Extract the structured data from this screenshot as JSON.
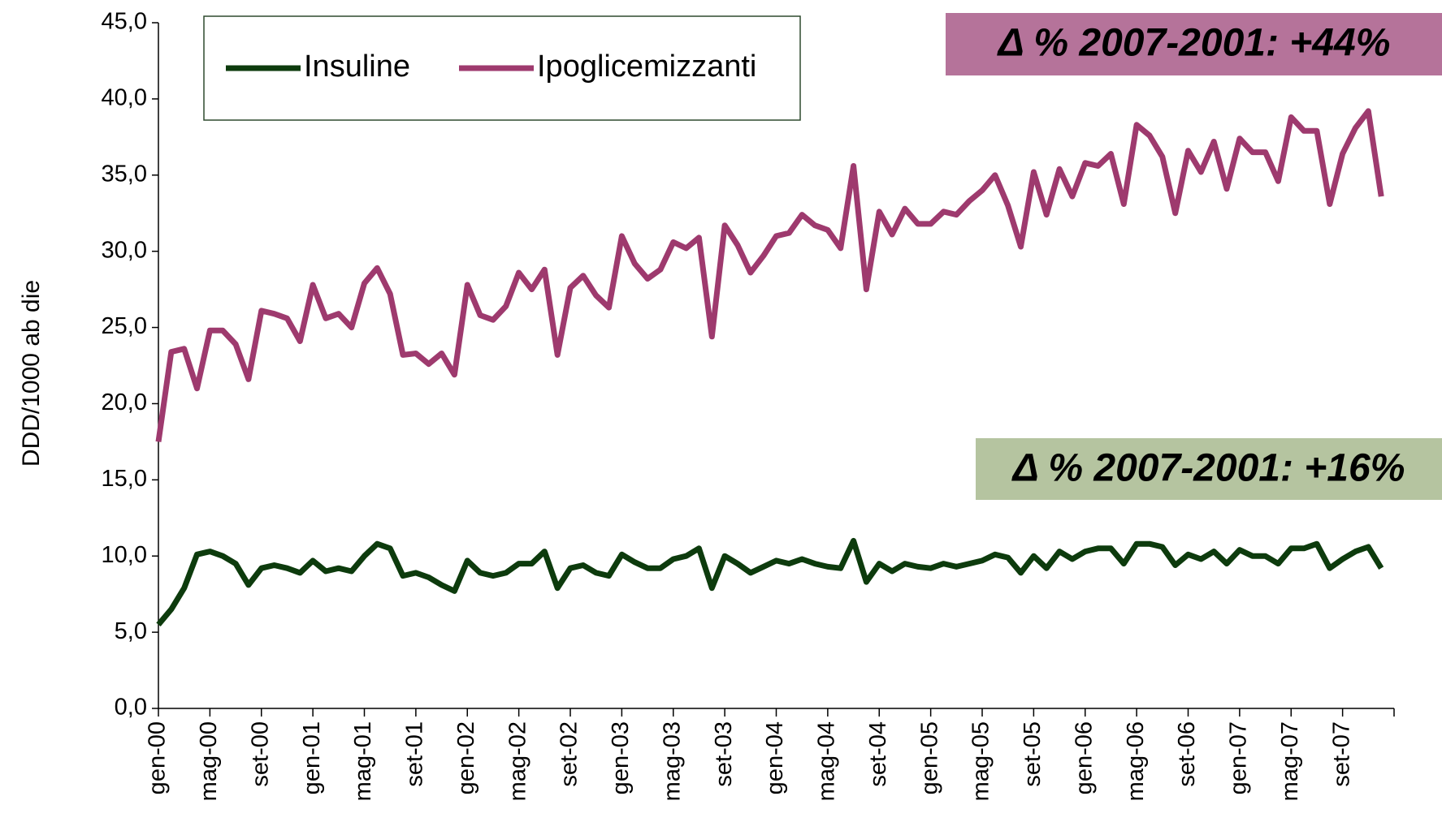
{
  "chart_data": {
    "type": "line",
    "y_label": "DDD/1000 ab die",
    "annotations": [
      "Δ % 2007-2001: +44%",
      "Δ % 2007-2001: +16%"
    ],
    "categories": [
      "gen-00",
      null,
      null,
      null,
      "mag-00",
      null,
      null,
      null,
      "set-00",
      null,
      null,
      null,
      "gen-01",
      null,
      null,
      null,
      "mag-01",
      null,
      null,
      null,
      "set-01",
      null,
      null,
      null,
      "gen-02",
      null,
      null,
      null,
      "mag-02",
      null,
      null,
      null,
      "set-02",
      null,
      null,
      null,
      "gen-03",
      null,
      null,
      null,
      "mag-03",
      null,
      null,
      null,
      "set-03",
      null,
      null,
      null,
      "gen-04",
      null,
      null,
      null,
      "mag-04",
      null,
      null,
      null,
      "set-04",
      null,
      null,
      null,
      "gen-05",
      null,
      null,
      null,
      "mag-05",
      null,
      null,
      null,
      "set-05",
      null,
      null,
      null,
      "gen-06",
      null,
      null,
      null,
      "mag-06",
      null,
      null,
      null,
      "set-06",
      null,
      null,
      null,
      "gen-07",
      null,
      null,
      null,
      "mag-07",
      null,
      null,
      null,
      "set-07",
      null,
      null,
      null
    ],
    "series": [
      {
        "name": "Insuline",
        "color": "#0d3b0d",
        "values": [
          5.5,
          6.5,
          7.9,
          10.1,
          10.3,
          10.0,
          9.5,
          8.1,
          9.2,
          9.4,
          9.2,
          8.9,
          9.7,
          9.0,
          9.2,
          9.0,
          10.0,
          10.8,
          10.5,
          8.7,
          8.9,
          8.6,
          8.1,
          7.7,
          9.7,
          8.9,
          8.7,
          8.9,
          9.5,
          9.5,
          10.3,
          7.9,
          9.2,
          9.4,
          8.9,
          8.7,
          10.1,
          9.6,
          9.2,
          9.2,
          9.8,
          10.0,
          10.5,
          7.9,
          10.0,
          9.5,
          8.9,
          9.3,
          9.7,
          9.5,
          9.8,
          9.5,
          9.3,
          9.2,
          11.0,
          8.3,
          9.5,
          9.0,
          9.5,
          9.3,
          9.2,
          9.5,
          9.3,
          9.5,
          9.7,
          10.1,
          9.9,
          8.9,
          10.0,
          9.2,
          10.3,
          9.8,
          10.3,
          10.5,
          10.5,
          9.5,
          10.8,
          10.8,
          10.6,
          9.4,
          10.1,
          9.8,
          10.3,
          9.5,
          10.4,
          10.0,
          10.0,
          9.5,
          10.5,
          10.5,
          10.8,
          9.2,
          9.8,
          10.3,
          10.6,
          9.2
        ]
      },
      {
        "name": "Ipoglicemizzanti",
        "color": "#9e3a6e",
        "values": [
          17.5,
          23.4,
          23.6,
          21.0,
          24.8,
          24.8,
          23.9,
          21.6,
          26.1,
          25.9,
          25.6,
          24.1,
          27.8,
          25.6,
          25.9,
          25.0,
          27.9,
          28.9,
          27.2,
          23.2,
          23.3,
          22.6,
          23.3,
          21.9,
          27.8,
          25.8,
          25.5,
          26.4,
          28.6,
          27.5,
          28.8,
          23.2,
          27.6,
          28.4,
          27.1,
          26.3,
          31.0,
          29.2,
          28.2,
          28.8,
          30.6,
          30.2,
          30.9,
          24.4,
          31.7,
          30.4,
          28.6,
          29.7,
          31.0,
          31.2,
          32.4,
          31.7,
          31.4,
          30.2,
          35.6,
          27.5,
          32.6,
          31.1,
          32.8,
          31.8,
          31.8,
          32.6,
          32.4,
          33.3,
          34.0,
          35.0,
          33.0,
          30.3,
          35.2,
          32.4,
          35.4,
          33.6,
          35.8,
          35.6,
          36.4,
          33.1,
          38.3,
          37.6,
          36.2,
          32.5,
          36.6,
          35.2,
          37.2,
          34.1,
          37.4,
          36.5,
          36.5,
          34.6,
          38.8,
          37.9,
          37.9,
          33.1,
          36.4,
          38.1,
          39.2,
          33.6
        ]
      }
    ],
    "ylim": [
      0,
      45
    ],
    "yticks": [
      {
        "value": 0,
        "label": "0,0"
      },
      {
        "value": 5,
        "label": "5,0"
      },
      {
        "value": 10,
        "label": "10,0"
      },
      {
        "value": 15,
        "label": "15,0"
      },
      {
        "value": 20,
        "label": "20,0"
      },
      {
        "value": 25,
        "label": "25,0"
      },
      {
        "value": 30,
        "label": "30,0"
      },
      {
        "value": 35,
        "label": "35,0"
      },
      {
        "value": 40,
        "label": "40,0"
      },
      {
        "value": 45,
        "label": "45,0"
      }
    ],
    "grid": false
  }
}
